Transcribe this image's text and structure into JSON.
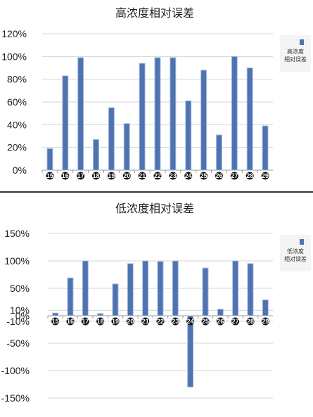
{
  "chart_data": [
    {
      "type": "bar",
      "title": "高浓度相对误差",
      "categories": [
        "15",
        "16",
        "17",
        "18",
        "19",
        "20",
        "21",
        "22",
        "23",
        "24",
        "25",
        "26",
        "27",
        "28",
        "29"
      ],
      "series": [
        {
          "name": "高浓度\n相对误差",
          "values": [
            19,
            83,
            99,
            27,
            55,
            41,
            94,
            99,
            99,
            61,
            88,
            31,
            100,
            90,
            39
          ]
        }
      ],
      "ylim": [
        0,
        120
      ],
      "yticks": [
        "0%",
        "20%",
        "40%",
        "60%",
        "80%",
        "100%",
        "120%"
      ],
      "ytick_values": [
        0,
        20,
        40,
        60,
        80,
        100,
        120
      ],
      "grid": true,
      "legend": "right",
      "bar_color": "#4f73b1"
    },
    {
      "type": "bar",
      "title": "低浓度相对误差",
      "categories": [
        "15",
        "16",
        "17",
        "18",
        "19",
        "20",
        "21",
        "22",
        "23",
        "24",
        "25",
        "26",
        "27",
        "28",
        "29"
      ],
      "series": [
        {
          "name": "低浓度\n相对误差",
          "values": [
            5,
            69,
            100,
            4,
            58,
            95,
            100,
            99,
            100,
            -130,
            87,
            12,
            100,
            95,
            29
          ]
        }
      ],
      "ylim": [
        -150,
        150
      ],
      "yticks": [
        "-150%",
        "-100%",
        "-50%",
        "-10%",
        "0%",
        "10%",
        "50%",
        "100%",
        "150%"
      ],
      "ytick_values": [
        -150,
        -100,
        -50,
        -10,
        0,
        10,
        50,
        100,
        150
      ],
      "grid": true,
      "legend": "right",
      "bar_color": "#4f73b1"
    }
  ]
}
